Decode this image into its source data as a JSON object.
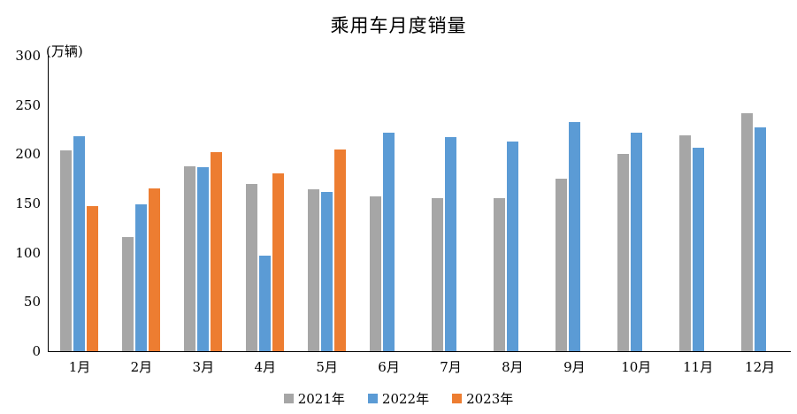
{
  "chart_data": {
    "type": "bar",
    "title": "乘用车月度销量",
    "unit_label": "(万辆)",
    "xlabel": "",
    "ylabel": "万辆",
    "categories": [
      "1月",
      "2月",
      "3月",
      "4月",
      "5月",
      "6月",
      "7月",
      "8月",
      "9月",
      "10月",
      "11月",
      "12月"
    ],
    "series": [
      {
        "name": "2021年",
        "color": "#A6A6A6",
        "values": [
          204,
          116,
          188,
          170,
          164,
          157,
          155,
          155,
          175,
          200,
          219,
          242
        ]
      },
      {
        "name": "2022年",
        "color": "#5B9BD5",
        "values": [
          218,
          149,
          187,
          97,
          162,
          222,
          217,
          213,
          233,
          222,
          207,
          227
        ]
      },
      {
        "name": "2023年",
        "color": "#ED7D31",
        "values": [
          147,
          165,
          202,
          181,
          205,
          null,
          null,
          null,
          null,
          null,
          null,
          null
        ]
      }
    ],
    "ylim": [
      0,
      300
    ],
    "yticks": [
      0,
      50,
      100,
      150,
      200,
      250,
      300
    ],
    "grid": false,
    "legend_position": "bottom",
    "axis_color": "#000000",
    "background_color": "#FFFFFF"
  }
}
